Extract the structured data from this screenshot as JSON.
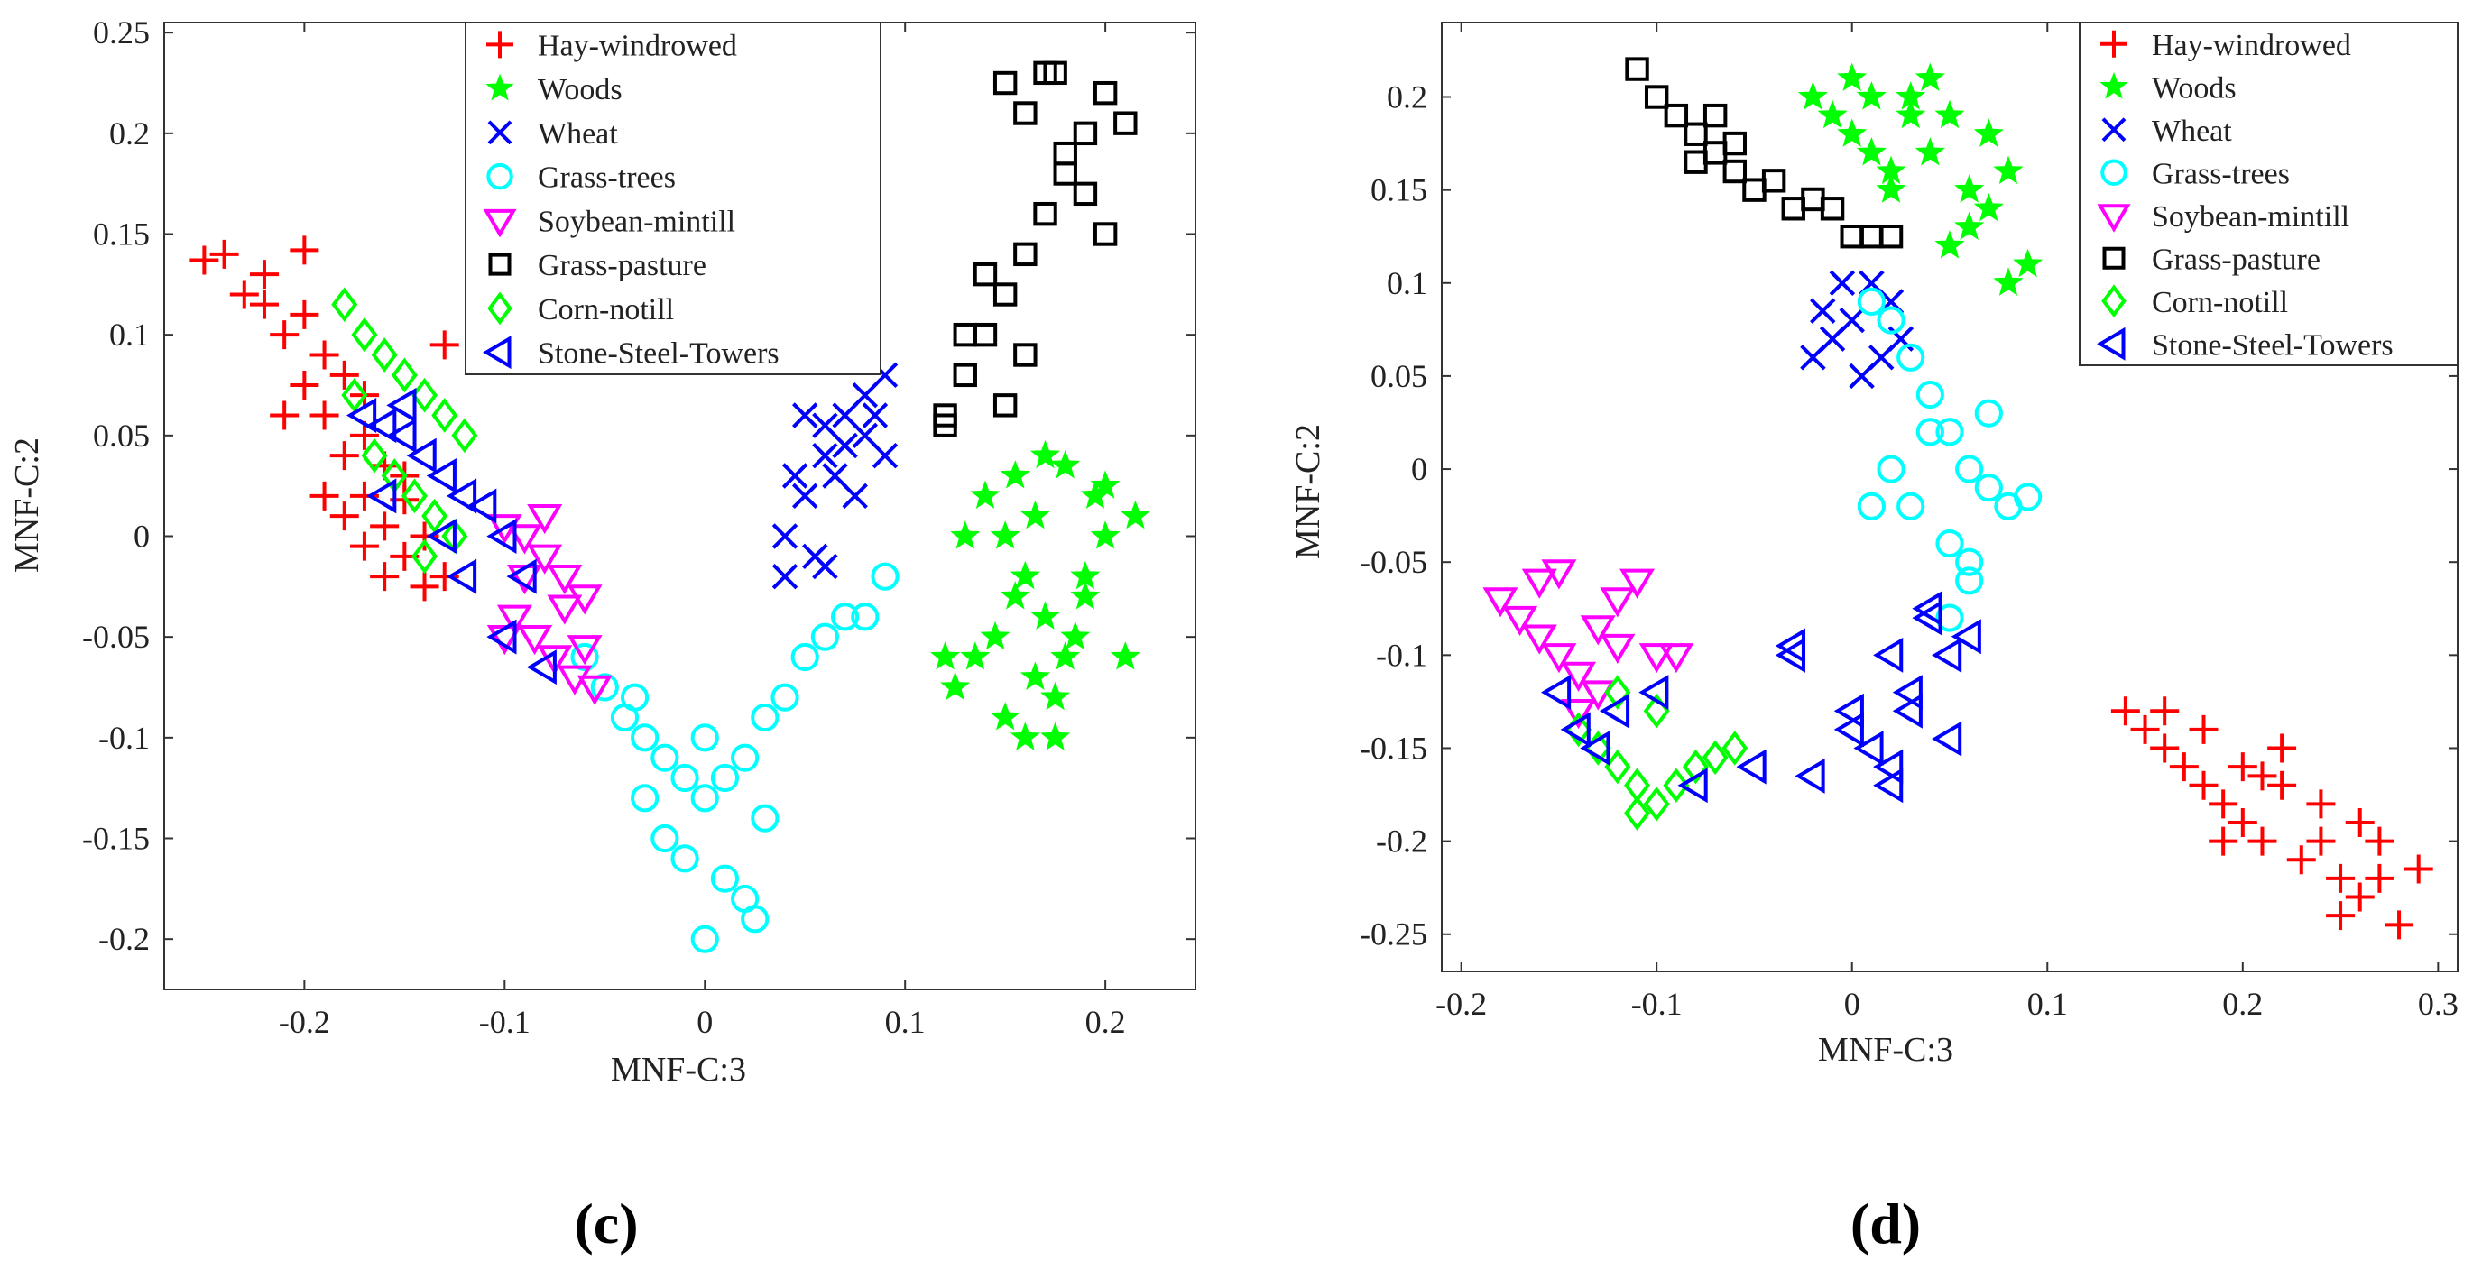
{
  "panels": [
    {
      "caption": "(c)"
    },
    {
      "caption": "(d)"
    }
  ],
  "legend_labels": [
    "Hay-windrowed",
    "Woods",
    "Wheat",
    "Grass-trees",
    "Soybean-mintill",
    "Grass-pasture",
    "Corn-notill",
    "Stone-Steel-Towers"
  ],
  "colors": {
    "Hay-windrowed": "#ff0000",
    "Woods": "#00ff00",
    "Wheat": "#0000ff",
    "Grass-trees": "#00ffff",
    "Soybean-mintill": "#ff00ff",
    "Grass-pasture": "#000000",
    "Corn-notill": "#00ff00",
    "Stone-Steel-Towers": "#0000ff"
  },
  "markers": {
    "Hay-windrowed": "plus-icon",
    "Woods": "star-icon",
    "Wheat": "cross-icon",
    "Grass-trees": "circle-icon",
    "Soybean-mintill": "triangle-down-icon",
    "Grass-pasture": "square-icon",
    "Corn-notill": "diamond-icon",
    "Stone-Steel-Towers": "triangle-left-icon"
  },
  "chart_data": [
    {
      "type": "scatter",
      "title": "",
      "caption": "(c)",
      "xlabel": "MNF-C:3",
      "ylabel": "MNF-C:2",
      "xlim": [
        -0.27,
        0.245
      ],
      "ylim": [
        -0.225,
        0.255
      ],
      "xticks": [
        -0.2,
        -0.1,
        0,
        0.1,
        0.2
      ],
      "xtick_labels": [
        "-0.2",
        "-0.1",
        "0",
        "0.1",
        "0.2"
      ],
      "yticks": [
        -0.2,
        -0.15,
        -0.1,
        -0.05,
        0,
        0.05,
        0.1,
        0.15,
        0.2,
        0.25
      ],
      "ytick_labels": [
        "-0.2",
        "-0.15",
        "-0.1",
        "-0.05",
        "0",
        "0.05",
        "0.1",
        "0.15",
        "0.2",
        "0.25"
      ],
      "grid": false,
      "legend_position": "top-center",
      "series": [
        {
          "name": "Hay-windrowed",
          "x": [
            -0.25,
            -0.24,
            -0.23,
            -0.22,
            -0.2,
            -0.21,
            -0.19,
            -0.2,
            -0.18,
            -0.19,
            -0.17,
            -0.18,
            -0.16,
            -0.17,
            -0.15,
            -0.16,
            -0.14,
            -0.15,
            -0.13,
            -0.14,
            -0.19,
            -0.18,
            -0.17,
            -0.16,
            -0.2,
            -0.22,
            -0.21,
            -0.17,
            -0.13,
            -0.15
          ],
          "y": [
            0.137,
            0.14,
            0.12,
            0.13,
            0.142,
            0.1,
            0.09,
            0.075,
            0.08,
            0.06,
            0.05,
            0.04,
            0.035,
            0.02,
            0.018,
            0.005,
            0.0,
            -0.01,
            -0.02,
            -0.025,
            0.02,
            0.01,
            -0.005,
            -0.02,
            0.11,
            0.115,
            0.06,
            0.07,
            0.095,
            0.03
          ]
        },
        {
          "name": "Woods",
          "x": [
            0.14,
            0.15,
            0.16,
            0.17,
            0.18,
            0.19,
            0.2,
            0.155,
            0.165,
            0.175,
            0.185,
            0.195,
            0.145,
            0.135,
            0.125,
            0.17,
            0.18,
            0.16,
            0.15,
            0.19,
            0.2,
            0.21,
            0.215,
            0.13,
            0.12,
            0.175,
            0.165,
            0.155
          ],
          "y": [
            0.02,
            0.0,
            -0.02,
            -0.04,
            -0.06,
            -0.03,
            0.0,
            0.03,
            -0.07,
            -0.08,
            -0.05,
            0.02,
            -0.05,
            -0.06,
            -0.075,
            0.04,
            0.035,
            -0.1,
            -0.09,
            -0.02,
            0.025,
            -0.06,
            0.01,
            0.0,
            -0.06,
            -0.1,
            0.01,
            -0.03
          ]
        },
        {
          "name": "Wheat",
          "x": [
            0.04,
            0.05,
            0.06,
            0.07,
            0.08,
            0.09,
            0.055,
            0.065,
            0.075,
            0.085,
            0.06,
            0.07,
            0.08,
            0.045,
            0.04,
            0.09,
            0.05,
            0.06
          ],
          "y": [
            0.0,
            0.02,
            0.04,
            0.06,
            0.05,
            0.08,
            -0.01,
            0.03,
            0.02,
            0.06,
            -0.015,
            0.045,
            0.07,
            0.03,
            -0.02,
            0.04,
            0.06,
            0.055
          ]
        },
        {
          "name": "Grass-trees",
          "x": [
            -0.06,
            -0.05,
            -0.04,
            -0.03,
            -0.02,
            -0.01,
            0.0,
            0.01,
            0.02,
            0.03,
            0.04,
            0.05,
            0.06,
            0.07,
            0.08,
            0.09,
            0.0,
            0.01,
            -0.01,
            0.02,
            -0.02,
            0.03,
            0.0,
            -0.03,
            0.025,
            -0.035
          ],
          "y": [
            -0.06,
            -0.075,
            -0.09,
            -0.1,
            -0.11,
            -0.12,
            -0.13,
            -0.12,
            -0.11,
            -0.09,
            -0.08,
            -0.06,
            -0.05,
            -0.04,
            -0.04,
            -0.02,
            -0.2,
            -0.17,
            -0.16,
            -0.18,
            -0.15,
            -0.14,
            -0.1,
            -0.13,
            -0.19,
            -0.08
          ]
        },
        {
          "name": "Soybean-mintill",
          "x": [
            -0.1,
            -0.09,
            -0.08,
            -0.07,
            -0.06,
            -0.095,
            -0.085,
            -0.075,
            -0.065,
            -0.055,
            -0.08,
            -0.07,
            -0.09,
            -0.1,
            -0.06
          ],
          "y": [
            0.005,
            0.0,
            -0.01,
            -0.02,
            -0.03,
            -0.04,
            -0.05,
            -0.06,
            -0.07,
            -0.075,
            0.01,
            -0.035,
            -0.02,
            -0.05,
            -0.055
          ]
        },
        {
          "name": "Grass-pasture",
          "x": [
            0.12,
            0.13,
            0.14,
            0.15,
            0.16,
            0.17,
            0.18,
            0.19,
            0.2,
            0.21,
            0.15,
            0.16,
            0.17,
            0.18,
            0.19,
            0.14,
            0.13,
            0.12,
            0.15,
            0.16,
            0.2,
            0.175
          ],
          "y": [
            0.06,
            0.08,
            0.1,
            0.12,
            0.14,
            0.16,
            0.18,
            0.2,
            0.22,
            0.205,
            0.225,
            0.21,
            0.23,
            0.19,
            0.17,
            0.13,
            0.1,
            0.055,
            0.065,
            0.09,
            0.15,
            0.23
          ]
        },
        {
          "name": "Corn-notill",
          "x": [
            -0.18,
            -0.17,
            -0.16,
            -0.15,
            -0.14,
            -0.13,
            -0.12,
            -0.165,
            -0.155,
            -0.145,
            -0.135,
            -0.175,
            -0.14,
            -0.125
          ],
          "y": [
            0.115,
            0.1,
            0.09,
            0.08,
            0.07,
            0.06,
            0.05,
            0.04,
            0.03,
            0.02,
            0.01,
            0.07,
            -0.01,
            0.0
          ]
        },
        {
          "name": "Stone-Steel-Towers",
          "x": [
            -0.17,
            -0.16,
            -0.15,
            -0.14,
            -0.13,
            -0.12,
            -0.11,
            -0.1,
            -0.09,
            -0.16,
            -0.15,
            -0.13,
            -0.1,
            -0.12,
            -0.08
          ],
          "y": [
            0.06,
            0.055,
            0.05,
            0.04,
            0.03,
            0.02,
            0.015,
            0.0,
            -0.02,
            0.02,
            0.065,
            0.0,
            -0.05,
            -0.02,
            -0.065
          ]
        }
      ]
    },
    {
      "type": "scatter",
      "title": "",
      "caption": "(d)",
      "xlabel": "MNF-C:3",
      "ylabel": "MNF-C:2",
      "xlim": [
        -0.21,
        0.31
      ],
      "ylim": [
        -0.27,
        0.24
      ],
      "xticks": [
        -0.2,
        -0.1,
        0,
        0.1,
        0.2,
        0.3
      ],
      "xtick_labels": [
        "-0.2",
        "-0.1",
        "0",
        "0.1",
        "0.2",
        "0.3"
      ],
      "yticks": [
        -0.25,
        -0.2,
        -0.15,
        -0.1,
        -0.05,
        0,
        0.05,
        0.1,
        0.15,
        0.2
      ],
      "ytick_labels": [
        "-0.25",
        "-0.2",
        "-0.15",
        "-0.1",
        "-0.05",
        "0",
        "0.05",
        "0.1",
        "0.15",
        "0.2"
      ],
      "grid": false,
      "legend_position": "top-right",
      "series": [
        {
          "name": "Hay-windrowed",
          "x": [
            0.14,
            0.15,
            0.16,
            0.17,
            0.18,
            0.19,
            0.2,
            0.21,
            0.22,
            0.23,
            0.24,
            0.25,
            0.26,
            0.27,
            0.28,
            0.29,
            0.16,
            0.18,
            0.2,
            0.22,
            0.24,
            0.26,
            0.19,
            0.21,
            0.25,
            0.27
          ],
          "y": [
            -0.13,
            -0.14,
            -0.15,
            -0.16,
            -0.17,
            -0.18,
            -0.19,
            -0.2,
            -0.17,
            -0.21,
            -0.2,
            -0.22,
            -0.23,
            -0.22,
            -0.245,
            -0.215,
            -0.13,
            -0.14,
            -0.16,
            -0.15,
            -0.18,
            -0.19,
            -0.2,
            -0.165,
            -0.24,
            -0.2
          ]
        },
        {
          "name": "Woods",
          "x": [
            -0.02,
            -0.01,
            0.0,
            0.01,
            0.02,
            0.03,
            0.04,
            0.05,
            0.06,
            0.07,
            0.08,
            0.09,
            0.0,
            0.02,
            0.04,
            0.06,
            0.08,
            0.01,
            0.03,
            0.05,
            0.07
          ],
          "y": [
            0.2,
            0.19,
            0.18,
            0.17,
            0.16,
            0.2,
            0.21,
            0.19,
            0.15,
            0.14,
            0.1,
            0.11,
            0.21,
            0.15,
            0.17,
            0.13,
            0.16,
            0.2,
            0.19,
            0.12,
            0.18
          ]
        },
        {
          "name": "Wheat",
          "x": [
            -0.02,
            -0.01,
            0.0,
            0.01,
            0.02,
            0.005,
            -0.015,
            0.015,
            -0.005,
            0.025
          ],
          "y": [
            0.06,
            0.07,
            0.08,
            0.1,
            0.09,
            0.05,
            0.085,
            0.06,
            0.1,
            0.07
          ]
        },
        {
          "name": "Grass-trees",
          "x": [
            0.01,
            0.02,
            0.03,
            0.04,
            0.05,
            0.06,
            0.07,
            0.08,
            0.09,
            0.03,
            0.04,
            0.05,
            0.06,
            0.02,
            0.01,
            0.07,
            0.05,
            0.06
          ],
          "y": [
            0.09,
            0.08,
            0.06,
            0.04,
            0.02,
            0.0,
            -0.01,
            -0.02,
            -0.015,
            -0.02,
            0.02,
            -0.04,
            -0.06,
            0.0,
            -0.02,
            0.03,
            -0.08,
            -0.05
          ]
        },
        {
          "name": "Soybean-mintill",
          "x": [
            -0.18,
            -0.17,
            -0.16,
            -0.15,
            -0.14,
            -0.13,
            -0.12,
            -0.11,
            -0.1,
            -0.09,
            -0.15,
            -0.14,
            -0.12,
            -0.16,
            -0.13
          ],
          "y": [
            -0.07,
            -0.08,
            -0.09,
            -0.1,
            -0.11,
            -0.12,
            -0.07,
            -0.06,
            -0.1,
            -0.1,
            -0.055,
            -0.13,
            -0.095,
            -0.06,
            -0.085
          ]
        },
        {
          "name": "Grass-pasture",
          "x": [
            -0.11,
            -0.1,
            -0.09,
            -0.08,
            -0.07,
            -0.06,
            -0.05,
            -0.04,
            -0.03,
            -0.02,
            -0.01,
            0.0,
            0.01,
            0.02,
            -0.07,
            -0.06,
            -0.08
          ],
          "y": [
            0.215,
            0.2,
            0.19,
            0.18,
            0.17,
            0.16,
            0.15,
            0.155,
            0.14,
            0.145,
            0.14,
            0.125,
            0.125,
            0.125,
            0.19,
            0.175,
            0.165
          ]
        },
        {
          "name": "Corn-notill",
          "x": [
            -0.14,
            -0.13,
            -0.12,
            -0.11,
            -0.1,
            -0.09,
            -0.08,
            -0.07,
            -0.06,
            -0.12,
            -0.1,
            -0.11
          ],
          "y": [
            -0.14,
            -0.15,
            -0.16,
            -0.17,
            -0.18,
            -0.17,
            -0.16,
            -0.155,
            -0.15,
            -0.12,
            -0.13,
            -0.185
          ]
        },
        {
          "name": "Stone-Steel-Towers",
          "x": [
            -0.15,
            -0.14,
            -0.13,
            -0.12,
            -0.1,
            -0.08,
            -0.05,
            -0.03,
            -0.02,
            0.0,
            0.01,
            0.02,
            0.03,
            0.04,
            0.05,
            0.06,
            0.02,
            0.03,
            0.04,
            0.05,
            -0.03,
            0.0,
            0.02
          ],
          "y": [
            -0.12,
            -0.14,
            -0.15,
            -0.13,
            -0.12,
            -0.17,
            -0.16,
            -0.1,
            -0.165,
            -0.14,
            -0.15,
            -0.17,
            -0.12,
            -0.08,
            -0.1,
            -0.09,
            -0.1,
            -0.13,
            -0.075,
            -0.145,
            -0.095,
            -0.13,
            -0.16
          ]
        }
      ]
    }
  ]
}
